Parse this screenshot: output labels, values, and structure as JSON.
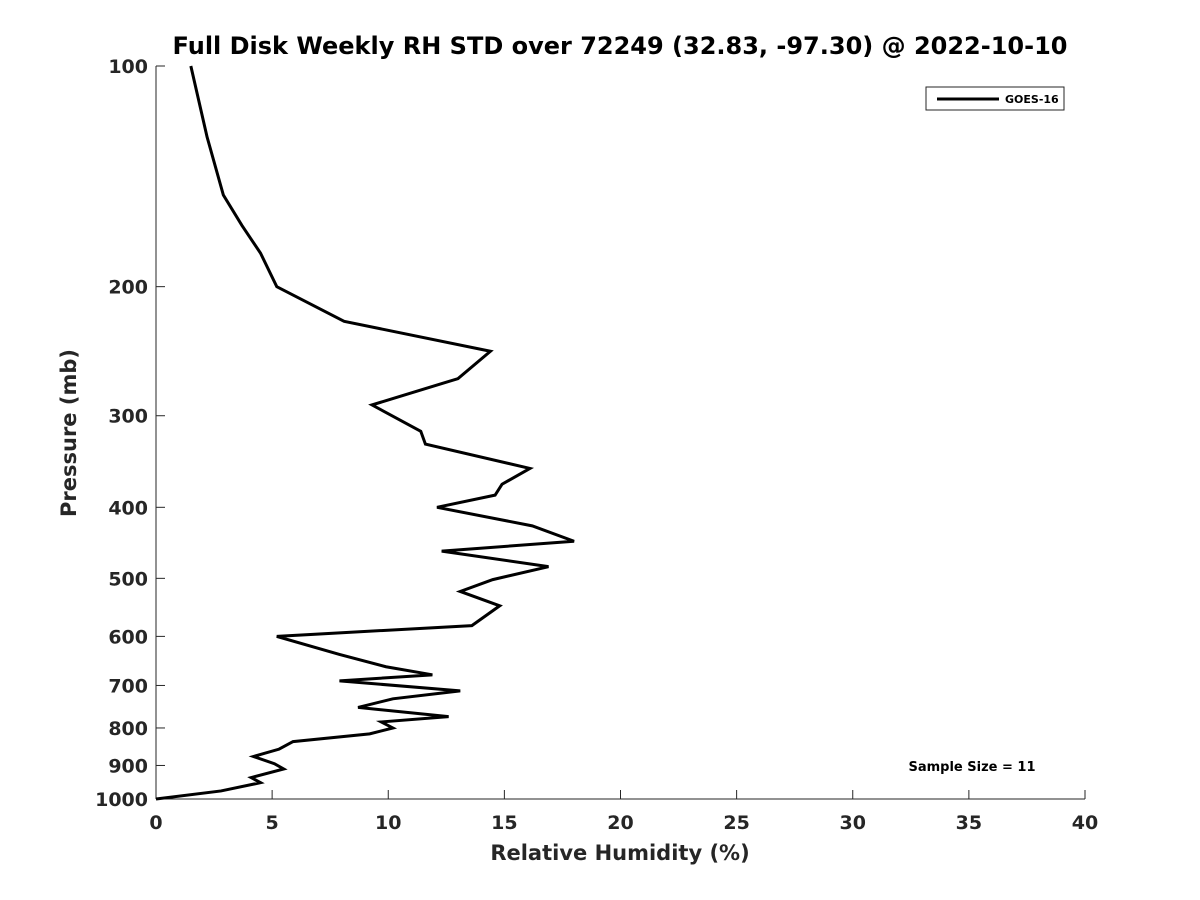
{
  "chart_data": {
    "type": "line",
    "title": "Full Disk Weekly RH STD over 72249 (32.83, -97.30) @ 2022-10-10",
    "xlabel": "Relative Humidity (%)",
    "ylabel": "Pressure (mb)",
    "xlim": [
      0,
      40
    ],
    "ylim": [
      1000,
      100
    ],
    "yscale": "log",
    "xticks": [
      0,
      5,
      10,
      15,
      20,
      25,
      30,
      35,
      40
    ],
    "yticks": [
      100,
      200,
      300,
      400,
      500,
      600,
      700,
      800,
      900,
      1000
    ],
    "grid": false,
    "legend_position": "top-right",
    "annotation": "Sample Size = 11",
    "series": [
      {
        "name": "GOES-16",
        "color": "#000000",
        "x": [
          1.5,
          2.2,
          2.9,
          3.7,
          4.5,
          5.2,
          8.1,
          14.4,
          13.0,
          9.3,
          11.4,
          11.6,
          16.1,
          14.9,
          14.6,
          12.1,
          16.2,
          18.0,
          12.3,
          16.9,
          14.5,
          13.1,
          14.8,
          13.6,
          5.2,
          7.9,
          9.9,
          11.9,
          7.9,
          13.1,
          10.2,
          8.7,
          12.6,
          9.7,
          10.2,
          9.2,
          5.9,
          5.3,
          4.2,
          5.1,
          5.5,
          4.1,
          4.5,
          2.8,
          0.0
        ],
        "y": [
          100,
          125,
          150,
          165,
          180,
          200,
          223,
          245,
          267,
          290,
          315,
          328,
          354,
          372,
          385,
          400,
          424,
          445,
          459,
          482,
          502,
          521,
          545,
          580,
          600,
          635,
          660,
          677,
          690,
          712,
          730,
          750,
          772,
          785,
          800,
          815,
          835,
          855,
          875,
          895,
          910,
          935,
          950,
          975,
          1000
        ]
      }
    ]
  }
}
